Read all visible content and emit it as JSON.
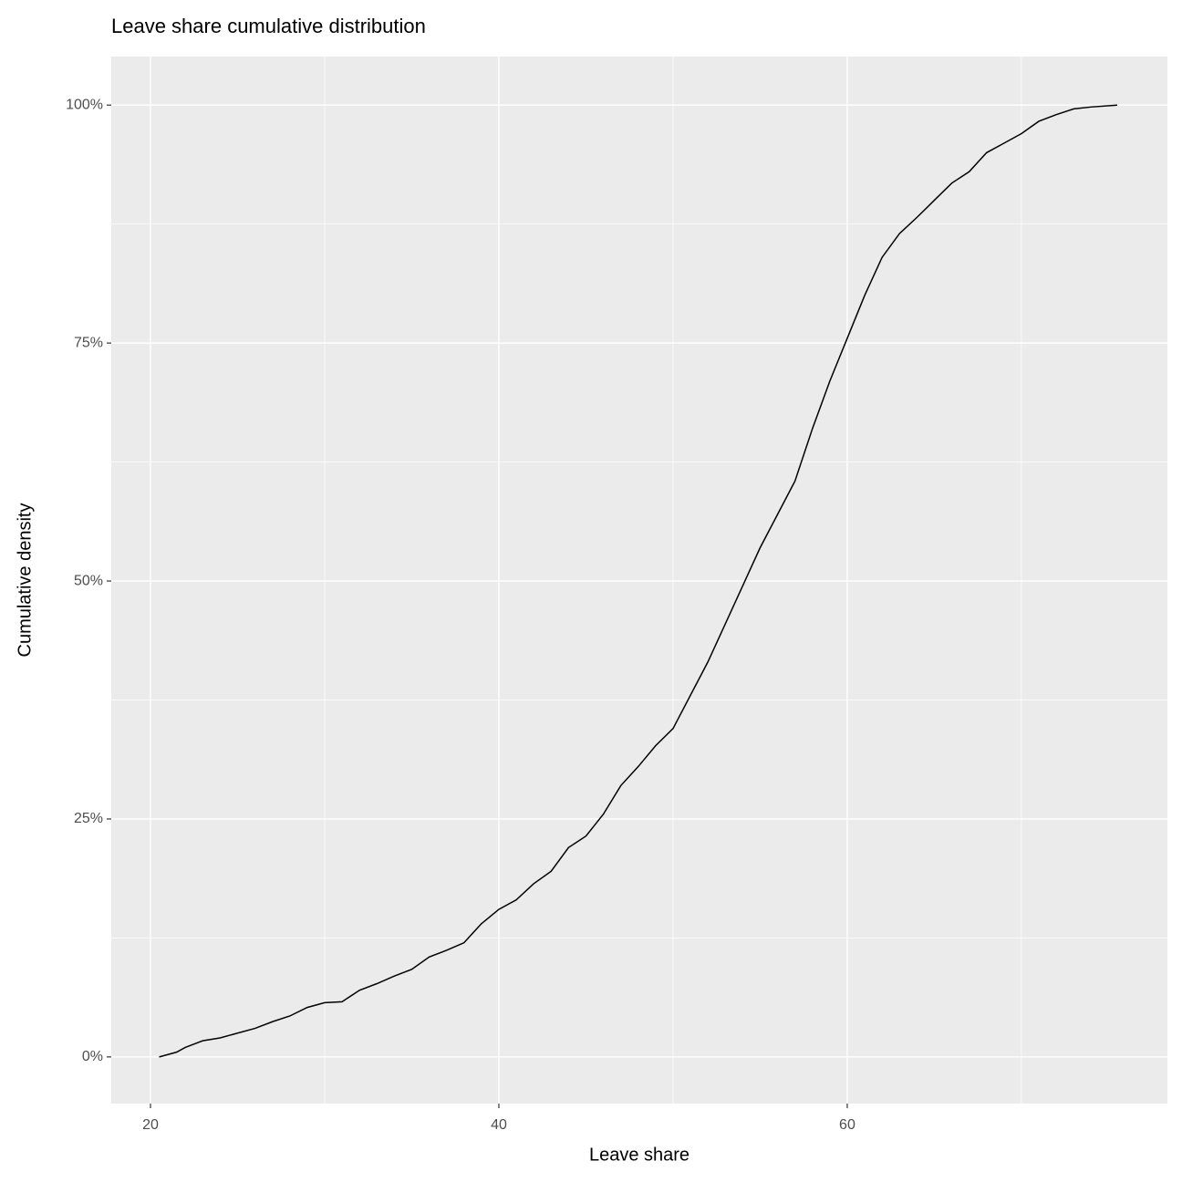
{
  "chart_data": {
    "type": "line",
    "title": "Leave share cumulative distribution",
    "x_label": "Leave share",
    "y_label": "Cumulative density",
    "x": [
      20.5,
      21.5,
      22,
      23,
      24,
      25,
      26,
      27,
      28,
      29,
      30,
      31,
      32,
      33,
      34,
      35,
      36,
      37,
      38,
      39,
      40,
      41,
      42,
      43,
      44,
      45,
      46,
      47,
      48,
      49,
      50,
      51,
      52,
      53,
      54,
      55,
      56,
      57,
      58,
      59,
      60,
      61,
      62,
      63,
      64,
      65,
      66,
      67,
      68,
      69,
      70,
      71,
      72,
      73,
      74,
      75.5
    ],
    "series": [
      {
        "name": "Leave share",
        "color": "#000000",
        "values": [
          0,
          0.5,
          1,
          1.7,
          2,
          2.5,
          3,
          3.7,
          4.3,
          5.2,
          5.7,
          5.8,
          7,
          7.7,
          8.5,
          9.2,
          10.5,
          11.2,
          12,
          14,
          15.5,
          16.5,
          18.2,
          19.5,
          22,
          23.2,
          25.5,
          28.5,
          30.5,
          32.7,
          34.5,
          38,
          41.5,
          45.5,
          49.5,
          53.5,
          57,
          60.5,
          66,
          71,
          75.5,
          80,
          84,
          86.5,
          88.2,
          90,
          91.8,
          93,
          95,
          96,
          97,
          98.3,
          99,
          99.6,
          99.8,
          100
        ]
      }
    ],
    "xlim": [
      17.75,
      78.38
    ],
    "ylim": [
      -4.9,
      105.1
    ],
    "xticks": [
      20,
      40,
      60
    ],
    "yticks": [
      {
        "value": 0,
        "label": "0%"
      },
      {
        "value": 25,
        "label": "25%"
      },
      {
        "value": 50,
        "label": "50%"
      },
      {
        "value": 75,
        "label": "75%"
      },
      {
        "value": 100,
        "label": "100%"
      }
    ],
    "xminor": [
      30,
      50,
      70
    ],
    "yminor": [
      12.5,
      37.5,
      62.5,
      87.5
    ],
    "grid": true
  }
}
